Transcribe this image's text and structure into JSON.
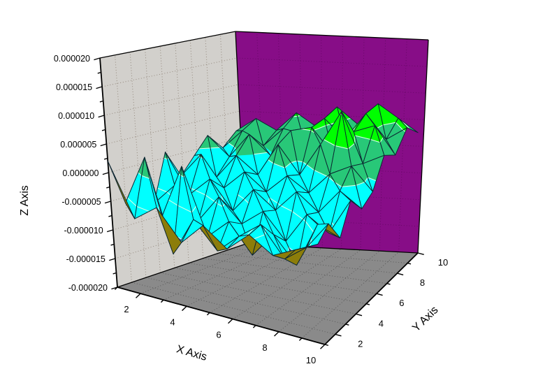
{
  "chart_data": {
    "type": "surface3d",
    "title": "",
    "axes": {
      "x": {
        "label": "X Axis",
        "range": [
          1,
          10
        ],
        "major_ticks": [
          2,
          4,
          6,
          8,
          10
        ],
        "major_tick_labels": [
          "2",
          "4",
          "6",
          "8",
          "10"
        ],
        "minor_ticks": [
          1,
          3,
          5,
          7,
          9
        ]
      },
      "y": {
        "label": "Y Axis",
        "range": [
          1,
          10
        ],
        "major_ticks": [
          2,
          4,
          6,
          8,
          10
        ],
        "major_tick_labels": [
          "2",
          "4",
          "6",
          "8",
          "10"
        ],
        "minor_ticks": [
          1,
          3,
          5,
          7,
          9
        ]
      },
      "z": {
        "label": "Z Axis",
        "range_micro": [
          -20,
          20
        ],
        "major_tick_values_micro": [
          20,
          15,
          10,
          5,
          0,
          -5,
          -10,
          -15,
          -20
        ],
        "major_tick_labels": [
          "0.000020",
          "0.000015",
          "0.000010",
          "0.000005",
          "0.000000",
          "-0.000005",
          "-0.000010",
          "-0.000015",
          "-0.000020"
        ],
        "minor_tick_values_micro": [
          17.5,
          12.5,
          7.5,
          2.5,
          -2.5,
          -7.5,
          -12.5,
          -17.5
        ],
        "wall_grid_levels_micro": [
          -15,
          -10,
          -5,
          0,
          5,
          10,
          15
        ]
      }
    },
    "surface": {
      "x": [
        1,
        2,
        3,
        4,
        5,
        6,
        7,
        8,
        9,
        10
      ],
      "y": [
        1,
        2,
        3,
        4,
        5,
        6,
        7,
        8,
        9,
        10
      ],
      "z_unit": "1e-6",
      "z_micro": [
        [
          2.0,
          -7.0,
          -4.0,
          -9.0,
          -5.0,
          -8.0,
          -4.5,
          -7.0,
          -5.0,
          -3.0
        ],
        [
          -6.0,
          3.0,
          -13.0,
          -6.0,
          -10.5,
          -7.0,
          -4.0,
          -9.0,
          -6.0,
          -1.0
        ],
        [
          -2.0,
          -8.0,
          1.5,
          -10.0,
          -6.5,
          -11.5,
          -7.0,
          -11.5,
          -3.5,
          -5.0
        ],
        [
          -7.5,
          -3.5,
          -9.0,
          -4.0,
          -8.0,
          -5.0,
          -9.5,
          -4.0,
          -6.5,
          0.0
        ],
        [
          1.0,
          -6.0,
          -2.5,
          -7.5,
          -3.0,
          -6.0,
          -2.0,
          -5.0,
          -0.5,
          -3.0
        ],
        [
          -4.0,
          0.5,
          -5.0,
          -1.5,
          -4.5,
          -1.0,
          -3.5,
          0.5,
          2.5,
          -1.5
        ],
        [
          -1.0,
          -4.5,
          0.0,
          -3.0,
          3.0,
          -2.0,
          4.0,
          10.5,
          1.5,
          3.5
        ],
        [
          2.0,
          -1.5,
          3.0,
          -0.5,
          4.5,
          5.5,
          1.0,
          5.5,
          7.0,
          2.0
        ],
        [
          -1.0,
          2.5,
          0.0,
          3.5,
          1.5,
          6.0,
          2.5,
          7.5,
          3.0,
          5.5
        ],
        [
          1.5,
          4.0,
          2.0,
          5.5,
          3.0,
          7.0,
          4.0,
          8.0,
          5.5,
          3.0
        ]
      ]
    },
    "color_bands": {
      "levels_micro": [
        -20,
        -15,
        -10,
        -5,
        0,
        5,
        10,
        15,
        20
      ],
      "colors": [
        "#1F52C8",
        "#2878DC",
        "#00FFFF",
        "#00FFFF",
        "#28C878",
        "#00FF00",
        "#FFFF00",
        "#FFA000"
      ]
    },
    "colors": {
      "background": "#FFFFFF",
      "wall_left": "#D2D0CC",
      "wall_back": "#870D87",
      "floor": "#8A8A8A",
      "grid_wall_left": "#93887D",
      "grid_wall_back": "#670967",
      "grid_floor": "#5A5A5A",
      "box_edge": "#000000",
      "mesh_line": "#0B2430",
      "contour_line": "#D9FFE6",
      "underside": "#8C7D0A",
      "text": "#000000"
    }
  }
}
